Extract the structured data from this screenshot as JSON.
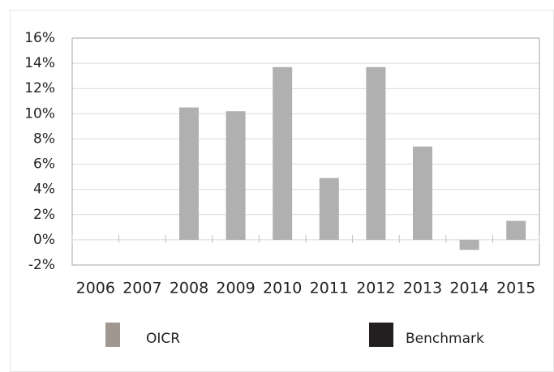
{
  "chart_data": {
    "type": "bar",
    "categories": [
      "2006",
      "2007",
      "2008",
      "2009",
      "2010",
      "2011",
      "2012",
      "2013",
      "2014",
      "2015"
    ],
    "series": [
      {
        "name": "OICR",
        "color": "#b0b0b0",
        "legend_color": "#a09890",
        "values": [
          null,
          null,
          10.5,
          10.2,
          13.7,
          4.9,
          13.7,
          7.4,
          -0.8,
          1.5
        ]
      },
      {
        "name": "Benchmark",
        "color": "#231f20",
        "values": [
          null,
          null,
          null,
          null,
          null,
          null,
          null,
          null,
          null,
          null
        ]
      }
    ],
    "ylim": [
      -2,
      16
    ],
    "yticks": [
      {
        "value": -2,
        "label": "-2%"
      },
      {
        "value": 0,
        "label": "0%"
      },
      {
        "value": 2,
        "label": "2%"
      },
      {
        "value": 4,
        "label": "4%"
      },
      {
        "value": 6,
        "label": "6%"
      },
      {
        "value": 8,
        "label": "8%"
      },
      {
        "value": 10,
        "label": "10%"
      },
      {
        "value": 12,
        "label": "12%"
      },
      {
        "value": 14,
        "label": "14%"
      },
      {
        "value": 16,
        "label": "16%"
      }
    ],
    "grid": true
  }
}
